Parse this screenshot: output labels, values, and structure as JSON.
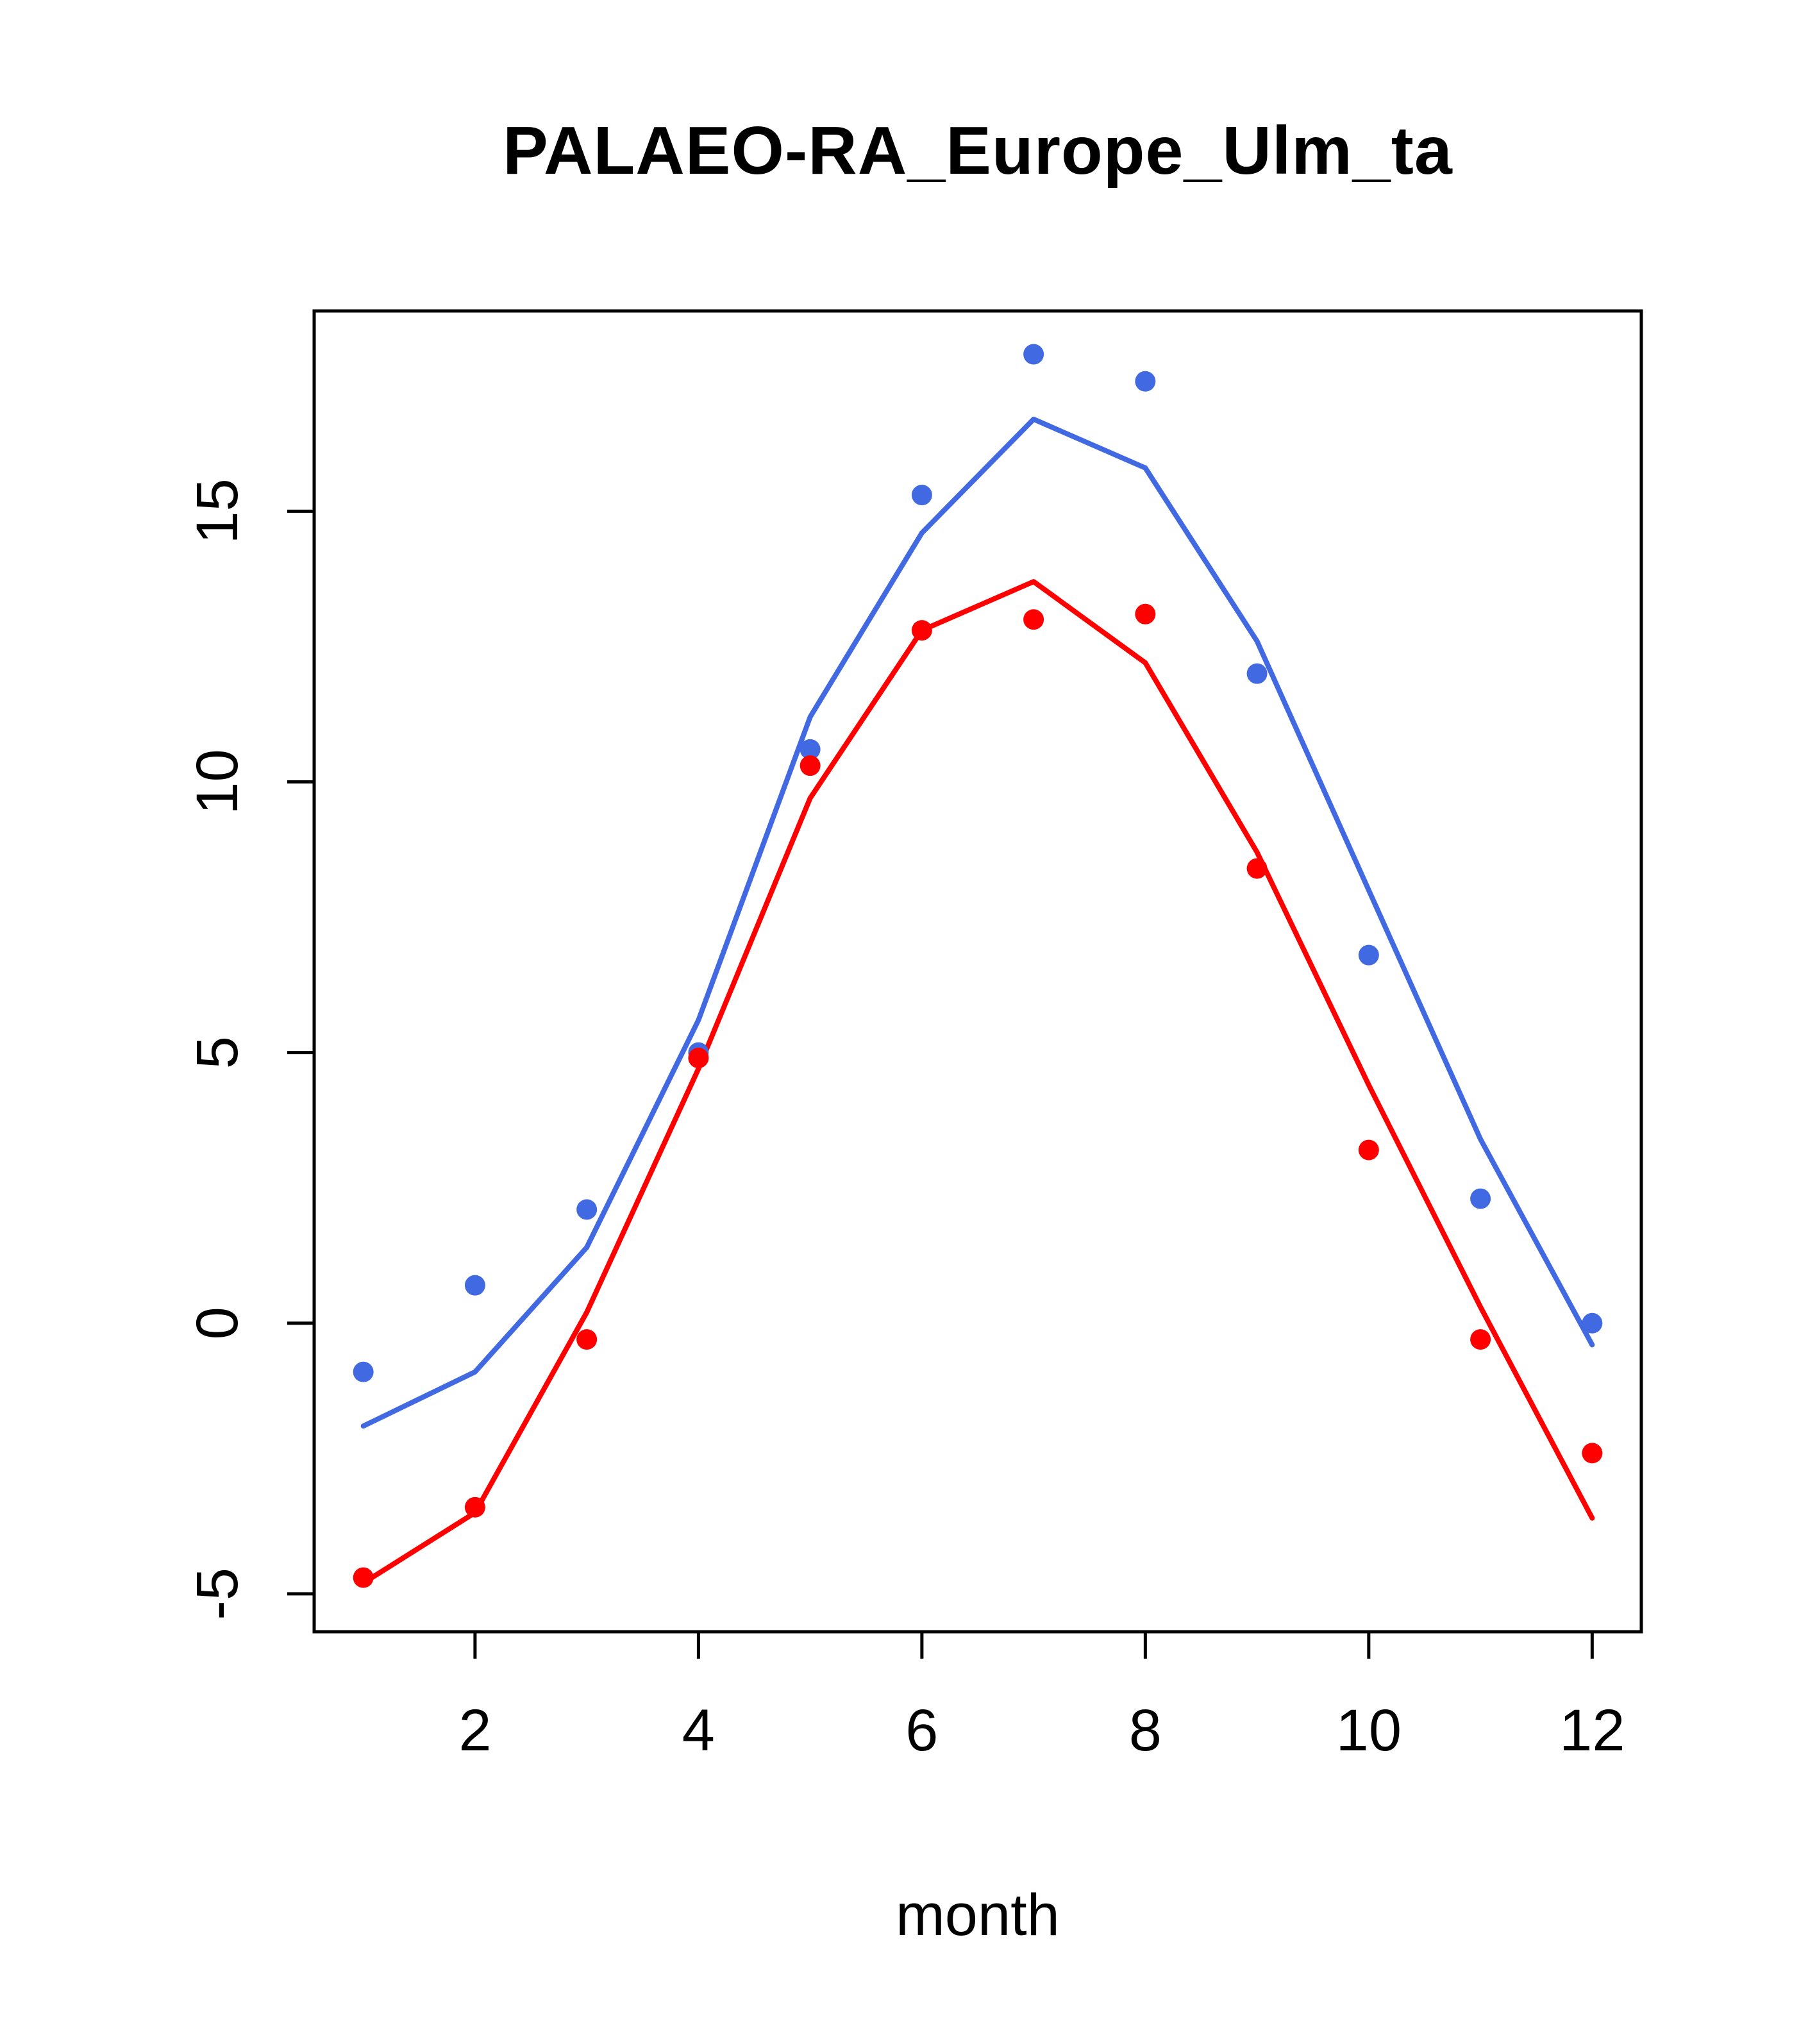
{
  "title": "PALAEO-RA_Europe_Ulm_ta",
  "chart_data": {
    "type": "line",
    "title": "PALAEO-RA_Europe_Ulm_ta",
    "xlabel": "month",
    "ylabel": "",
    "grid": false,
    "legend": "none",
    "x": [
      1,
      2,
      3,
      4,
      5,
      6,
      7,
      8,
      9,
      10,
      11,
      12
    ],
    "xticks": [
      2,
      4,
      6,
      8,
      10,
      12
    ],
    "yticks": [
      -5,
      0,
      5,
      10,
      15
    ],
    "xlim": [
      0.56,
      12.44
    ],
    "ylim": [
      -5.7,
      18.7
    ],
    "series": [
      {
        "name": "blue-line",
        "type": "line",
        "color": "#4169e1",
        "values": [
          -1.9,
          -0.9,
          1.4,
          5.6,
          11.2,
          14.6,
          16.7,
          15.8,
          12.6,
          8.0,
          3.4,
          -0.4
        ]
      },
      {
        "name": "red-line",
        "type": "line",
        "color": "#ff0000",
        "values": [
          -4.8,
          -3.5,
          0.2,
          4.7,
          9.7,
          12.8,
          13.7,
          12.2,
          8.7,
          4.4,
          0.3,
          -3.6
        ]
      },
      {
        "name": "blue-points",
        "type": "scatter",
        "color": "#4169e1",
        "values": [
          -0.9,
          0.7,
          2.1,
          5.0,
          10.6,
          15.3,
          17.9,
          17.4,
          12.0,
          6.8,
          2.3,
          0.0
        ]
      },
      {
        "name": "red-points",
        "type": "scatter",
        "color": "#ff0000",
        "values": [
          -4.7,
          -3.4,
          -0.3,
          4.9,
          10.3,
          12.8,
          13.0,
          13.1,
          8.4,
          3.2,
          -0.3,
          -2.4
        ]
      }
    ]
  }
}
